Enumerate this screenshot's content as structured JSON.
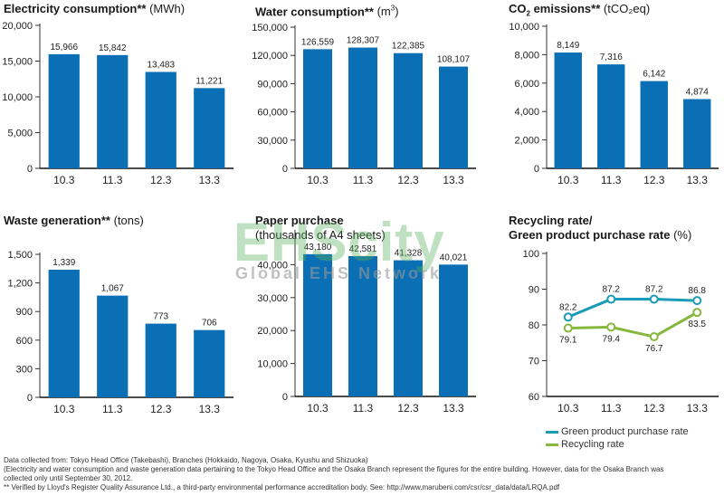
{
  "watermark": {
    "main": "EHScity",
    "sub": "Global EHS Network"
  },
  "chart_data": [
    {
      "type": "bar",
      "title": "Electricity consumption**",
      "title_unit": " (MWh)",
      "categories": [
        "10.3",
        "11.3",
        "12.3",
        "13.3"
      ],
      "values": [
        15966,
        15842,
        13483,
        11221
      ],
      "value_labels": [
        "15,966",
        "15,842",
        "13,483",
        "11,221"
      ],
      "ylim": [
        0,
        20000
      ],
      "yticks": [
        "0",
        "5,000",
        "10,000",
        "15,000",
        "20,000"
      ],
      "grid": false,
      "bar_color": "#0a6fb4"
    },
    {
      "type": "bar",
      "title": "Water consumption**",
      "title_unit_pre": " (m",
      "title_unit_sup": "3",
      "title_unit_post": ")",
      "categories": [
        "10.3",
        "11.3",
        "12.3",
        "13.3"
      ],
      "values": [
        126559,
        128307,
        122385,
        108107
      ],
      "value_labels": [
        "126,559",
        "128,307",
        "122,385",
        "108,107"
      ],
      "ylim": [
        0,
        150000
      ],
      "yticks": [
        "0",
        "30,000",
        "60,000",
        "90,000",
        "120,000",
        "150,000"
      ],
      "grid": false,
      "bar_color": "#0a6fb4"
    },
    {
      "type": "bar",
      "title_pre": "CO",
      "title_sub": "2",
      "title_post": " emissions**",
      "title_unit": " (tCO₂eq)",
      "categories": [
        "10.3",
        "11.3",
        "12.3",
        "13.3"
      ],
      "values": [
        8149,
        7316,
        6142,
        4874
      ],
      "value_labels": [
        "8,149",
        "7,316",
        "6,142",
        "4,874"
      ],
      "ylim": [
        0,
        10000
      ],
      "yticks": [
        "0",
        "2,000",
        "4,000",
        "6,000",
        "8,000",
        "10,000"
      ],
      "grid": false,
      "bar_color": "#0a6fb4"
    },
    {
      "type": "bar",
      "title": "Waste generation**",
      "title_unit": " (tons)",
      "categories": [
        "10.3",
        "11.3",
        "12.3",
        "13.3"
      ],
      "values": [
        1339,
        1067,
        773,
        706
      ],
      "value_labels": [
        "1,339",
        "1,067",
        "773",
        "706"
      ],
      "ylim": [
        0,
        1500
      ],
      "yticks": [
        "0",
        "300",
        "600",
        "900",
        "1,200",
        "1,500"
      ],
      "grid": false,
      "bar_color": "#0a6fb4"
    },
    {
      "type": "bar",
      "title": "Paper purchase",
      "title_line2": "(thousands of A4 sheets)",
      "categories": [
        "10.3",
        "11.3",
        "12.3",
        "13.3"
      ],
      "values": [
        43180,
        42581,
        41328,
        40021
      ],
      "value_labels": [
        "43,180",
        "42,581",
        "41,328",
        "40,021"
      ],
      "ylim": [
        0,
        50000
      ],
      "yticks": [
        "0",
        "10,000",
        "20,000",
        "30,000",
        "40,000"
      ],
      "grid": false,
      "bar_color": "#0a6fb4"
    },
    {
      "type": "line",
      "title": "Recycling rate/",
      "title_line2": "Green product purchase rate",
      "title_unit": " (%)",
      "categories": [
        "10.3",
        "11.3",
        "12.3",
        "13.3"
      ],
      "ylim": [
        60,
        100
      ],
      "yticks": [
        "60",
        "70",
        "80",
        "90",
        "100"
      ],
      "grid": false,
      "legend_position": "bottom",
      "series": [
        {
          "name": "Green product purchase rate",
          "values": [
            82.2,
            87.2,
            87.2,
            86.8
          ],
          "value_labels": [
            "82.2",
            "87.2",
            "87.2",
            "86.8"
          ],
          "color": "#1a9bb8"
        },
        {
          "name": "Recycling rate",
          "values": [
            79.1,
            79.4,
            76.7,
            83.5
          ],
          "value_labels": [
            "79.1",
            "79.4",
            "76.7",
            "83.5"
          ],
          "color": "#86b83e"
        }
      ]
    }
  ],
  "notes": [
    "Data collected from: Tokyo Head Office (Takebashi), Branches (Hokkaido, Nagoya, Osaka, Kyushu and Shizuoka)",
    "(Electricity and water consumption and waste generation data pertaining to the Tokyo Head Office and the Osaka Branch represent the figures for the entire building. However, data for the Osaka Branch was",
    "collected only until September 30, 2012.",
    "** Verified by Lloyd's Register Quality Assurance Ltd., a third-party environmental performance accreditation body. See: http://www.marubeni.com/csr/csr_data/data/LRQA.pdf"
  ]
}
